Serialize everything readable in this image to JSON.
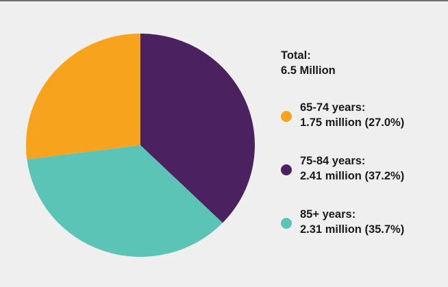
{
  "chart_data": {
    "type": "pie",
    "total_label": "Total:",
    "total_value": "6.5 Million",
    "slices": [
      {
        "label": "65-74 years:",
        "value_text": "1.75 million (27.0%)",
        "value": 1.75,
        "percent": 27.0,
        "color": "#f7a31e"
      },
      {
        "label": "75-84 years:",
        "value_text": "2.41 million (37.2%)",
        "value": 2.41,
        "percent": 37.2,
        "color": "#4b2160"
      },
      {
        "label": "85+ years:",
        "value_text": "2.31 million (35.7%)",
        "value": 2.31,
        "percent": 35.7,
        "color": "#5bc4b6"
      }
    ],
    "legend_position": "right"
  }
}
